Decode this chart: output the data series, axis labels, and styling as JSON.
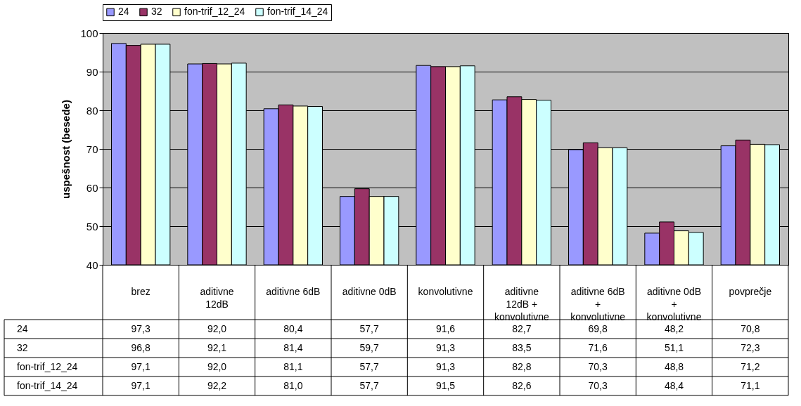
{
  "chart_data": {
    "type": "bar",
    "ylabel": "uspešnost (besede)",
    "categories": [
      "brez",
      "aditivne 12dB",
      "aditivne 6dB",
      "aditivne 0dB",
      "konvolutivne",
      "aditivne 12dB + konvolutivne",
      "aditivne 6dB + konvolutivne",
      "aditivne 0dB + konvolutivne",
      "povprečje"
    ],
    "series": [
      {
        "name": "24",
        "color": "#9999ff",
        "values": [
          97.3,
          92.0,
          80.4,
          57.7,
          91.6,
          82.7,
          69.8,
          48.2,
          70.8
        ],
        "value_labels": [
          "97,3",
          "92,0",
          "80,4",
          "57,7",
          "91,6",
          "82,7",
          "69,8",
          "48,2",
          "70,8"
        ]
      },
      {
        "name": "32",
        "color": "#993366",
        "values": [
          96.8,
          92.1,
          81.4,
          59.7,
          91.3,
          83.5,
          71.6,
          51.1,
          72.3
        ],
        "value_labels": [
          "96,8",
          "92,1",
          "81,4",
          "59,7",
          "91,3",
          "83,5",
          "71,6",
          "51,1",
          "72,3"
        ]
      },
      {
        "name": "fon-trif_12_24",
        "color": "#ffffcc",
        "values": [
          97.1,
          92.0,
          81.1,
          57.7,
          91.3,
          82.8,
          70.3,
          48.8,
          71.2
        ],
        "value_labels": [
          "97,1",
          "92,0",
          "81,1",
          "57,7",
          "91,3",
          "82,8",
          "70,3",
          "48,8",
          "71,2"
        ]
      },
      {
        "name": "fon-trif_14_24",
        "color": "#ccffff",
        "values": [
          97.1,
          92.2,
          81.0,
          57.7,
          91.5,
          82.6,
          70.3,
          48.4,
          71.1
        ],
        "value_labels": [
          "97,1",
          "92,2",
          "81,0",
          "57,7",
          "91,5",
          "82,6",
          "70,3",
          "48,4",
          "71,1"
        ]
      }
    ],
    "ylim": [
      40,
      100
    ],
    "yticks": [
      40,
      50,
      60,
      70,
      80,
      90,
      100
    ],
    "grid": "y",
    "legend": "top"
  }
}
